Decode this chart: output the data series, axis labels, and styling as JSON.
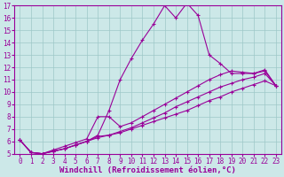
{
  "xlabel": "Windchill (Refroidissement éolien,°C)",
  "bg_color": "#cce8e8",
  "line_color": "#990099",
  "xlim": [
    -0.5,
    23.5
  ],
  "ylim": [
    5,
    17
  ],
  "yticks": [
    5,
    6,
    7,
    8,
    9,
    10,
    11,
    12,
    13,
    14,
    15,
    16,
    17
  ],
  "xticks": [
    0,
    1,
    2,
    3,
    4,
    5,
    6,
    7,
    8,
    9,
    10,
    11,
    12,
    13,
    14,
    15,
    16,
    17,
    18,
    19,
    20,
    21,
    22,
    23
  ],
  "curve1_x": [
    0,
    1,
    2,
    3,
    4,
    5,
    6,
    7,
    8,
    9,
    10,
    11,
    12,
    13,
    14,
    15,
    16,
    17,
    18,
    19,
    20,
    21,
    22,
    23
  ],
  "curve1_y": [
    6.1,
    5.1,
    5.0,
    5.2,
    5.4,
    5.7,
    6.0,
    6.3,
    6.5,
    6.8,
    7.1,
    7.5,
    7.9,
    8.3,
    8.8,
    9.2,
    9.6,
    10.0,
    10.4,
    10.7,
    11.0,
    11.2,
    11.5,
    10.5
  ],
  "curve2_x": [
    0,
    1,
    2,
    3,
    4,
    5,
    6,
    7,
    8,
    9,
    10,
    11,
    12,
    13,
    14,
    15,
    16,
    17,
    18,
    19,
    20,
    21,
    22,
    23
  ],
  "curve2_y": [
    6.1,
    5.1,
    5.0,
    5.2,
    5.4,
    5.7,
    6.0,
    6.5,
    8.5,
    11.0,
    12.7,
    14.2,
    15.5,
    17.0,
    16.0,
    17.2,
    16.2,
    13.0,
    12.3,
    11.5,
    11.5,
    11.5,
    11.7,
    10.5
  ],
  "curve3_x": [
    0,
    1,
    2,
    3,
    4,
    5,
    6,
    7,
    8,
    9,
    10,
    11,
    12,
    13,
    14,
    15,
    16,
    17,
    18,
    19,
    20,
    21,
    22,
    23
  ],
  "curve3_y": [
    6.1,
    5.1,
    5.0,
    5.2,
    5.4,
    5.7,
    6.0,
    6.4,
    6.5,
    6.7,
    7.0,
    7.3,
    7.6,
    7.9,
    8.2,
    8.5,
    8.9,
    9.3,
    9.6,
    10.0,
    10.3,
    10.6,
    10.9,
    10.5
  ],
  "curve4_x": [
    0,
    1,
    2,
    3,
    4,
    5,
    6,
    7,
    8,
    9,
    10,
    11,
    12,
    13,
    14,
    15,
    16,
    17,
    18,
    19,
    20,
    21,
    22,
    23
  ],
  "curve4_y": [
    6.1,
    5.1,
    5.0,
    5.3,
    5.6,
    5.9,
    6.2,
    8.0,
    8.0,
    7.2,
    7.5,
    8.0,
    8.5,
    9.0,
    9.5,
    10.0,
    10.5,
    11.0,
    11.4,
    11.7,
    11.6,
    11.5,
    11.8,
    10.5
  ],
  "grid_color": "#9ec8c8",
  "tick_fontsize": 5.5,
  "xlabel_fontsize": 6.5
}
